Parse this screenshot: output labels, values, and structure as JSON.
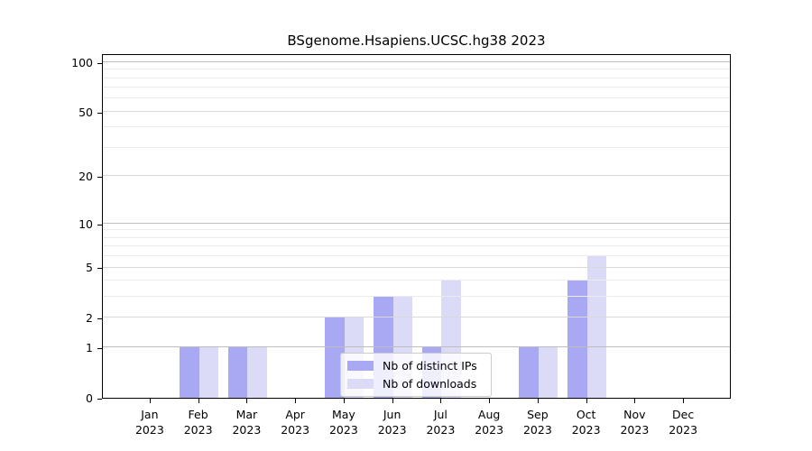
{
  "title": "BSgenome.Hsapiens.UCSC.hg38 2023",
  "legend": {
    "items": [
      {
        "label": "Nb of distinct IPs",
        "color": "#a9a9f3"
      },
      {
        "label": "Nb of downloads",
        "color": "#dbdbf8"
      }
    ],
    "position": "lower center"
  },
  "chart_data": {
    "type": "bar",
    "title": "BSgenome.Hsapiens.UCSC.hg38 2023",
    "categories": [
      "Jan 2023",
      "Feb 2023",
      "Mar 2023",
      "Apr 2023",
      "May 2023",
      "Jun 2023",
      "Jul 2023",
      "Aug 2023",
      "Sep 2023",
      "Oct 2023",
      "Nov 2023",
      "Dec 2023"
    ],
    "series": [
      {
        "name": "Nb of distinct IPs",
        "color": "#a9a9f3",
        "values": [
          0,
          1,
          1,
          0,
          2,
          3,
          1,
          0,
          1,
          4,
          0,
          0
        ]
      },
      {
        "name": "Nb of downloads",
        "color": "#dbdbf8",
        "values": [
          0,
          1,
          1,
          0,
          2,
          3,
          4,
          0,
          1,
          6,
          0,
          0
        ]
      }
    ],
    "xlabel": "",
    "ylabel": "",
    "yscale": "log1p",
    "ylim": [
      0,
      113
    ],
    "yticks_labeled": [
      0,
      1,
      2,
      5,
      10,
      20,
      50,
      100
    ],
    "yticks_minor": [
      3,
      4,
      6,
      7,
      8,
      9,
      30,
      40,
      60,
      70,
      80,
      90
    ],
    "grid": "horizontal",
    "grid_over_bars": true,
    "legend_position": "lower center"
  },
  "colors": {
    "distinct_ips_bar": "#a9a9f3",
    "downloads_bar": "#dbdbf8",
    "grid_major": "#bdbdbd",
    "grid_mid": "#d9d9d9",
    "grid_minor": "#ebebeb",
    "axis": "#000000",
    "legend_border": "#cccccc"
  }
}
